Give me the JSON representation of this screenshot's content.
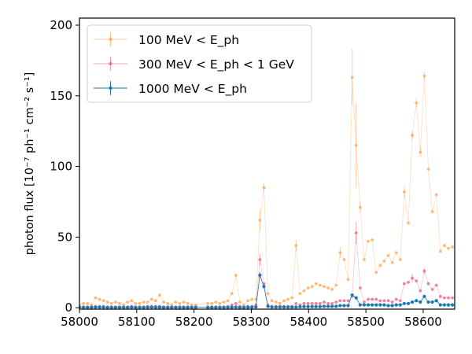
{
  "chart_data": {
    "type": "scatter",
    "title": "",
    "xlabel": "",
    "ylabel": "photon flux [10⁻⁷ ph⁻¹ cm⁻² s⁻¹]",
    "xlim": [
      58000,
      58655
    ],
    "ylim": [
      -1,
      205
    ],
    "x_ticks": [
      58000,
      58100,
      58200,
      58300,
      58400,
      58500,
      58600
    ],
    "y_ticks": [
      0,
      50,
      100,
      150,
      200
    ],
    "grid": false,
    "legend_position": "top-left",
    "series": [
      {
        "name": "100 MeV < E_ph",
        "color": "#ff9f4a",
        "line_opacity": 0.35,
        "marker_opacity": 0.7,
        "points": [
          [
            58000,
            2
          ],
          [
            58007,
            3
          ],
          [
            58014,
            3
          ],
          [
            58021,
            2
          ],
          [
            58028,
            7
          ],
          [
            58035,
            6
          ],
          [
            58042,
            5
          ],
          [
            58049,
            4
          ],
          [
            58056,
            3
          ],
          [
            58063,
            4
          ],
          [
            58070,
            3
          ],
          [
            58077,
            2
          ],
          [
            58084,
            4
          ],
          [
            58091,
            5
          ],
          [
            58098,
            3
          ],
          [
            58105,
            3
          ],
          [
            58112,
            4
          ],
          [
            58119,
            4
          ],
          [
            58126,
            6
          ],
          [
            58133,
            5
          ],
          [
            58140,
            9
          ],
          [
            58147,
            4
          ],
          [
            58154,
            3
          ],
          [
            58161,
            2
          ],
          [
            58168,
            4
          ],
          [
            58175,
            3
          ],
          [
            58182,
            4
          ],
          [
            58189,
            3
          ],
          [
            58196,
            2
          ],
          [
            58203,
            2
          ],
          [
            58224,
            3
          ],
          [
            58231,
            3
          ],
          [
            58238,
            4
          ],
          [
            58245,
            3
          ],
          [
            58252,
            4
          ],
          [
            58259,
            5
          ],
          [
            58266,
            10
          ],
          [
            58273,
            23
          ],
          [
            58280,
            4
          ],
          [
            58287,
            2
          ],
          [
            58294,
            5
          ],
          [
            58301,
            6
          ],
          [
            58308,
            6
          ],
          [
            58315,
            62
          ],
          [
            58322,
            85
          ],
          [
            58329,
            10
          ],
          [
            58336,
            5
          ],
          [
            58343,
            4
          ],
          [
            58350,
            3
          ],
          [
            58357,
            5
          ],
          [
            58364,
            6
          ],
          [
            58371,
            7
          ],
          [
            58378,
            44
          ],
          [
            58385,
            10
          ],
          [
            58392,
            12
          ],
          [
            58399,
            14
          ],
          [
            58406,
            15
          ],
          [
            58413,
            17
          ],
          [
            58420,
            16
          ],
          [
            58427,
            15
          ],
          [
            58434,
            14
          ],
          [
            58441,
            13
          ],
          [
            58448,
            16
          ],
          [
            58455,
            39
          ],
          [
            58462,
            34
          ],
          [
            58469,
            20
          ],
          [
            58476,
            163
          ],
          [
            58483,
            115
          ],
          [
            58490,
            71
          ],
          [
            58497,
            34
          ],
          [
            58504,
            47
          ],
          [
            58511,
            48
          ],
          [
            58518,
            25
          ],
          [
            58525,
            30
          ],
          [
            58532,
            33
          ],
          [
            58539,
            37
          ],
          [
            58546,
            32
          ],
          [
            58553,
            39
          ],
          [
            58560,
            34
          ],
          [
            58567,
            82
          ],
          [
            58574,
            60
          ],
          [
            58581,
            122
          ],
          [
            58588,
            145
          ],
          [
            58595,
            110
          ],
          [
            58602,
            164
          ],
          [
            58609,
            98
          ],
          [
            58616,
            68
          ],
          [
            58623,
            80
          ],
          [
            58630,
            40
          ],
          [
            58637,
            44
          ],
          [
            58644,
            42
          ],
          [
            58651,
            43
          ]
        ],
        "yerr": [
          [
            58315,
            8
          ],
          [
            58322,
            3
          ],
          [
            58378,
            4
          ],
          [
            58455,
            4
          ],
          [
            58476,
            20
          ],
          [
            58483,
            30
          ],
          [
            58490,
            4
          ],
          [
            58567,
            4
          ],
          [
            58581,
            3
          ],
          [
            58588,
            3
          ],
          [
            58595,
            3
          ],
          [
            58602,
            3
          ]
        ]
      },
      {
        "name": "300 MeV < E_ph < 1 GeV",
        "color": "#e8607a",
        "line_opacity": 0.35,
        "marker_opacity": 0.75,
        "points": [
          [
            58000,
            0.5
          ],
          [
            58007,
            0.5
          ],
          [
            58014,
            0.5
          ],
          [
            58021,
            0.5
          ],
          [
            58028,
            1
          ],
          [
            58035,
            1
          ],
          [
            58042,
            1
          ],
          [
            58049,
            0.5
          ],
          [
            58056,
            0.5
          ],
          [
            58063,
            0.5
          ],
          [
            58070,
            0.5
          ],
          [
            58077,
            0.5
          ],
          [
            58084,
            0.5
          ],
          [
            58091,
            1
          ],
          [
            58098,
            0.5
          ],
          [
            58105,
            0.5
          ],
          [
            58112,
            0.5
          ],
          [
            58119,
            1
          ],
          [
            58126,
            1
          ],
          [
            58133,
            1
          ],
          [
            58140,
            1
          ],
          [
            58147,
            0.5
          ],
          [
            58154,
            0.5
          ],
          [
            58161,
            0.5
          ],
          [
            58168,
            0.5
          ],
          [
            58175,
            0.5
          ],
          [
            58182,
            0.5
          ],
          [
            58189,
            0.5
          ],
          [
            58196,
            0.5
          ],
          [
            58203,
            0.5
          ],
          [
            58224,
            0.5
          ],
          [
            58231,
            0.5
          ],
          [
            58238,
            0.5
          ],
          [
            58245,
            0.5
          ],
          [
            58252,
            0.5
          ],
          [
            58259,
            1
          ],
          [
            58266,
            2
          ],
          [
            58273,
            3
          ],
          [
            58280,
            1
          ],
          [
            58287,
            0.5
          ],
          [
            58294,
            1
          ],
          [
            58301,
            1
          ],
          [
            58308,
            2
          ],
          [
            58315,
            34
          ],
          [
            58322,
            17
          ],
          [
            58329,
            2
          ],
          [
            58336,
            1
          ],
          [
            58343,
            1
          ],
          [
            58350,
            1
          ],
          [
            58357,
            1
          ],
          [
            58364,
            1
          ],
          [
            58371,
            1
          ],
          [
            58378,
            3
          ],
          [
            58385,
            2
          ],
          [
            58392,
            3
          ],
          [
            58399,
            3
          ],
          [
            58406,
            3
          ],
          [
            58413,
            3
          ],
          [
            58420,
            3
          ],
          [
            58427,
            4
          ],
          [
            58434,
            3
          ],
          [
            58441,
            3
          ],
          [
            58448,
            4
          ],
          [
            58455,
            5
          ],
          [
            58462,
            5
          ],
          [
            58469,
            5
          ],
          [
            58476,
            8
          ],
          [
            58483,
            53
          ],
          [
            58490,
            14
          ],
          [
            58497,
            4
          ],
          [
            58504,
            6
          ],
          [
            58511,
            6
          ],
          [
            58518,
            6
          ],
          [
            58525,
            5
          ],
          [
            58532,
            5
          ],
          [
            58539,
            5
          ],
          [
            58546,
            4
          ],
          [
            58553,
            6
          ],
          [
            58560,
            5
          ],
          [
            58567,
            17
          ],
          [
            58574,
            18
          ],
          [
            58581,
            21
          ],
          [
            58588,
            19
          ],
          [
            58595,
            12
          ],
          [
            58602,
            26
          ],
          [
            58609,
            17
          ],
          [
            58616,
            13
          ],
          [
            58623,
            16
          ],
          [
            58630,
            8
          ],
          [
            58637,
            7
          ],
          [
            58644,
            7
          ],
          [
            58651,
            7
          ]
        ],
        "yerr": [
          [
            58315,
            4
          ],
          [
            58483,
            8
          ],
          [
            58602,
            2
          ],
          [
            58581,
            3
          ]
        ]
      },
      {
        "name": "1000 MeV < E_ph",
        "color": "#1f77b4",
        "line_opacity": 0.9,
        "marker_opacity": 1,
        "points": [
          [
            58000,
            0.3
          ],
          [
            58007,
            0.3
          ],
          [
            58014,
            0.3
          ],
          [
            58021,
            0.3
          ],
          [
            58028,
            0.4
          ],
          [
            58035,
            0.4
          ],
          [
            58042,
            0.4
          ],
          [
            58049,
            0.3
          ],
          [
            58056,
            0.3
          ],
          [
            58063,
            0.3
          ],
          [
            58070,
            0.3
          ],
          [
            58077,
            0.3
          ],
          [
            58084,
            0.3
          ],
          [
            58091,
            0.4
          ],
          [
            58098,
            0.3
          ],
          [
            58105,
            0.3
          ],
          [
            58112,
            0.3
          ],
          [
            58119,
            0.4
          ],
          [
            58126,
            0.4
          ],
          [
            58133,
            0.4
          ],
          [
            58140,
            0.4
          ],
          [
            58147,
            0.3
          ],
          [
            58154,
            0.3
          ],
          [
            58161,
            0.3
          ],
          [
            58168,
            0.3
          ],
          [
            58175,
            0.3
          ],
          [
            58182,
            0.3
          ],
          [
            58189,
            0.3
          ],
          [
            58196,
            0.3
          ],
          [
            58203,
            0.3
          ],
          [
            58224,
            0.3
          ],
          [
            58231,
            0.3
          ],
          [
            58238,
            0.3
          ],
          [
            58245,
            0.3
          ],
          [
            58252,
            0.3
          ],
          [
            58259,
            0.3
          ],
          [
            58266,
            0.4
          ],
          [
            58273,
            0.5
          ],
          [
            58280,
            0.3
          ],
          [
            58287,
            0.3
          ],
          [
            58294,
            0.4
          ],
          [
            58301,
            0.4
          ],
          [
            58308,
            0.6
          ],
          [
            58315,
            23
          ],
          [
            58322,
            15
          ],
          [
            58329,
            1
          ],
          [
            58336,
            0.5
          ],
          [
            58343,
            0.5
          ],
          [
            58350,
            0.5
          ],
          [
            58357,
            0.5
          ],
          [
            58364,
            0.5
          ],
          [
            58371,
            0.5
          ],
          [
            58378,
            0.5
          ],
          [
            58385,
            0.7
          ],
          [
            58392,
            0.8
          ],
          [
            58399,
            0.8
          ],
          [
            58406,
            0.8
          ],
          [
            58413,
            0.8
          ],
          [
            58420,
            0.8
          ],
          [
            58427,
            1
          ],
          [
            58434,
            1
          ],
          [
            58441,
            1
          ],
          [
            58448,
            1
          ],
          [
            58455,
            1.5
          ],
          [
            58462,
            1.5
          ],
          [
            58469,
            1.5
          ],
          [
            58476,
            9
          ],
          [
            58483,
            7
          ],
          [
            58490,
            2
          ],
          [
            58497,
            2
          ],
          [
            58504,
            2
          ],
          [
            58511,
            2
          ],
          [
            58518,
            2
          ],
          [
            58525,
            2
          ],
          [
            58532,
            2
          ],
          [
            58539,
            1.5
          ],
          [
            58546,
            1.5
          ],
          [
            58553,
            2
          ],
          [
            58560,
            2
          ],
          [
            58567,
            3
          ],
          [
            58574,
            3
          ],
          [
            58581,
            4
          ],
          [
            58588,
            5
          ],
          [
            58595,
            4
          ],
          [
            58602,
            8
          ],
          [
            58609,
            4
          ],
          [
            58616,
            4
          ],
          [
            58623,
            5
          ],
          [
            58630,
            2
          ],
          [
            58637,
            2
          ],
          [
            58644,
            2
          ],
          [
            58651,
            2
          ]
        ],
        "yerr": [
          [
            58315,
            2
          ],
          [
            58476,
            1
          ]
        ]
      }
    ]
  }
}
